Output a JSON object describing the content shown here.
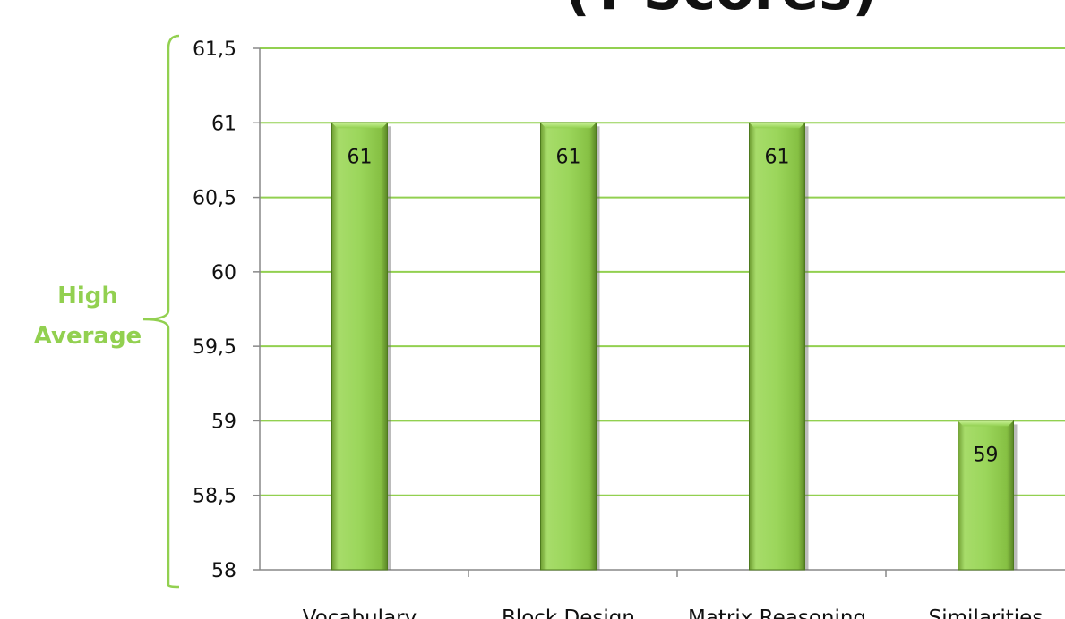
{
  "chart_data": {
    "type": "bar",
    "title": "(T-Scores)",
    "categories": [
      "Vocabulary",
      "Block Design",
      "Matrix Reasoning",
      "Similarities"
    ],
    "values": [
      61,
      61,
      61,
      59
    ],
    "value_labels": [
      "61",
      "61",
      "61",
      "59"
    ],
    "ylim": [
      58,
      61.5
    ],
    "y_ticks": [
      58,
      58.5,
      59,
      59.5,
      60,
      60.5,
      61,
      61.5
    ],
    "y_tick_labels": [
      "58",
      "58,5",
      "59",
      "59,5",
      "60",
      "60,5",
      "61",
      "61,5"
    ],
    "grid": true,
    "legend": "none",
    "annotation": {
      "line1": "High",
      "line2": "Average",
      "range": [
        58,
        61.5
      ]
    }
  },
  "colors": {
    "bar": "#92d050",
    "bar_dark": "#4e7a1e",
    "grid": "#92d050",
    "brace": "#92d050",
    "text": "#111111"
  }
}
